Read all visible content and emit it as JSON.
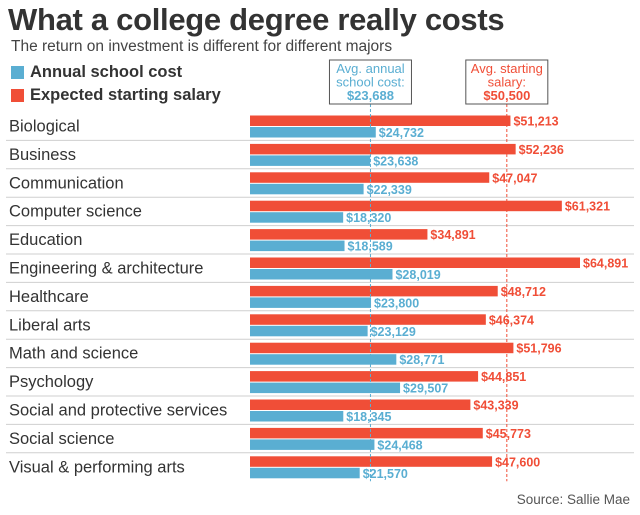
{
  "title": "What a college degree really costs",
  "subtitle": "The return on investment is different for different majors",
  "legend": [
    {
      "label": "Annual school cost",
      "color": "#5aaed2"
    },
    {
      "label": "Expected starting salary",
      "color": "#f04e37"
    }
  ],
  "source": "Source: Sallie Mae",
  "chart_data": {
    "type": "bar",
    "orientation": "horizontal",
    "title": "What a college degree really costs",
    "categories": [
      "Biological",
      "Business",
      "Communication",
      "Computer science",
      "Education",
      "Engineering & architecture",
      "Healthcare",
      "Liberal arts",
      "Math and science",
      "Psychology",
      "Social and protective services",
      "Social science",
      "Visual & performing arts"
    ],
    "series": [
      {
        "name": "Expected starting salary",
        "color": "#f04e37",
        "values": [
          51213,
          52236,
          47047,
          61321,
          34891,
          64891,
          48712,
          46374,
          51796,
          44851,
          43339,
          45773,
          47600
        ],
        "labels": [
          "$51,213",
          "$52,236",
          "$47,047",
          "$61,321",
          "$34,891",
          "$64,891",
          "$48,712",
          "$46,374",
          "$51,796",
          "$44,851",
          "$43,339",
          "$45,773",
          "$47,600"
        ]
      },
      {
        "name": "Annual school cost",
        "color": "#5aaed2",
        "values": [
          24732,
          23638,
          22339,
          18320,
          18589,
          28019,
          23800,
          23129,
          28771,
          29507,
          18345,
          24468,
          21570
        ],
        "labels": [
          "$24,732",
          "$23,638",
          "$22,339",
          "$18,320",
          "$18,589",
          "$28,019",
          "$23,800",
          "$23,129",
          "$28,771",
          "$29,507",
          "$18,345",
          "$24,468",
          "$21,570"
        ]
      }
    ],
    "xlim": [
      0,
      64891
    ],
    "reference_lines": [
      {
        "series": "Annual school cost",
        "value": 23688,
        "lines": [
          "Avg. annual",
          "school cost:",
          "$23,688"
        ],
        "color": "#5aaed2"
      },
      {
        "series": "Expected starting salary",
        "value": 50500,
        "lines": [
          "Avg. starting",
          "salary:",
          "$50,500"
        ],
        "color": "#f04e37"
      }
    ]
  }
}
